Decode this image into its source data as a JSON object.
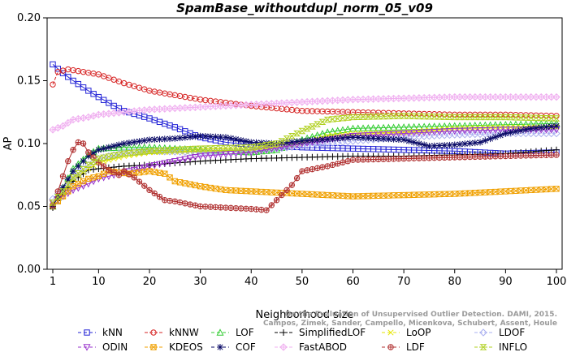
{
  "chart_data": {
    "type": "line",
    "title": "SpamBase_withoutdupl_norm_05_v09",
    "xlabel": "Neighborhood size",
    "ylabel": "AP",
    "xlim": [
      1,
      100
    ],
    "ylim": [
      0,
      0.2
    ],
    "x_ticks": [
      1,
      10,
      20,
      30,
      40,
      50,
      60,
      70,
      80,
      90,
      100
    ],
    "y_ticks": [
      "0.00",
      "0.05",
      "0.10",
      "0.15",
      "0.20"
    ],
    "grid": false,
    "legend_position": "bottom",
    "credit_lines": [
      "Campos, Zimek, Sander, Campello, Micenkova, Schubert, Assent, Houle",
      "On the Evaluation of Unsupervised Outlier Detection. DAMI, 2015."
    ],
    "series": [
      {
        "name": "kNN",
        "color": "#2323d6",
        "marker": "square",
        "points": [
          [
            1,
            0.163
          ],
          [
            3,
            0.156
          ],
          [
            5,
            0.15
          ],
          [
            8,
            0.142
          ],
          [
            10,
            0.137
          ],
          [
            13,
            0.13
          ],
          [
            15,
            0.126
          ],
          [
            20,
            0.12
          ],
          [
            25,
            0.113
          ],
          [
            30,
            0.105
          ],
          [
            35,
            0.101
          ],
          [
            40,
            0.099
          ],
          [
            50,
            0.097
          ],
          [
            60,
            0.096
          ],
          [
            70,
            0.095
          ],
          [
            80,
            0.094
          ],
          [
            90,
            0.092
          ],
          [
            100,
            0.093
          ]
        ]
      },
      {
        "name": "kNNW",
        "color": "#d62323",
        "marker": "circle",
        "points": [
          [
            1,
            0.147
          ],
          [
            2,
            0.157
          ],
          [
            4,
            0.159
          ],
          [
            10,
            0.155
          ],
          [
            15,
            0.148
          ],
          [
            20,
            0.142
          ],
          [
            30,
            0.135
          ],
          [
            40,
            0.13
          ],
          [
            50,
            0.126
          ],
          [
            60,
            0.125
          ],
          [
            70,
            0.124
          ],
          [
            80,
            0.123
          ],
          [
            90,
            0.123
          ],
          [
            100,
            0.122
          ]
        ]
      },
      {
        "name": "LOF",
        "color": "#33cc33",
        "marker": "triangle-up",
        "points": [
          [
            1,
            0.05
          ],
          [
            3,
            0.065
          ],
          [
            5,
            0.08
          ],
          [
            8,
            0.091
          ],
          [
            10,
            0.096
          ],
          [
            15,
            0.097
          ],
          [
            20,
            0.097
          ],
          [
            30,
            0.095
          ],
          [
            40,
            0.093
          ],
          [
            45,
            0.095
          ],
          [
            50,
            0.103
          ],
          [
            55,
            0.109
          ],
          [
            60,
            0.112
          ],
          [
            70,
            0.113
          ],
          [
            80,
            0.114
          ],
          [
            90,
            0.115
          ],
          [
            100,
            0.116
          ]
        ]
      },
      {
        "name": "SimplifiedLOF",
        "color": "#000000",
        "marker": "plus",
        "points": [
          [
            1,
            0.049
          ],
          [
            3,
            0.06
          ],
          [
            5,
            0.07
          ],
          [
            8,
            0.079
          ],
          [
            10,
            0.08
          ],
          [
            15,
            0.082
          ],
          [
            20,
            0.083
          ],
          [
            30,
            0.086
          ],
          [
            40,
            0.088
          ],
          [
            50,
            0.089
          ],
          [
            60,
            0.09
          ],
          [
            70,
            0.09
          ],
          [
            80,
            0.091
          ],
          [
            90,
            0.092
          ],
          [
            100,
            0.095
          ]
        ]
      },
      {
        "name": "LoOP",
        "color": "#e6e600",
        "marker": "cross",
        "points": [
          [
            1,
            0.052
          ],
          [
            3,
            0.062
          ],
          [
            5,
            0.072
          ],
          [
            8,
            0.08
          ],
          [
            10,
            0.085
          ],
          [
            15,
            0.09
          ],
          [
            20,
            0.093
          ],
          [
            30,
            0.094
          ],
          [
            40,
            0.095
          ],
          [
            50,
            0.1
          ],
          [
            55,
            0.106
          ],
          [
            60,
            0.108
          ],
          [
            70,
            0.109
          ],
          [
            80,
            0.112
          ],
          [
            90,
            0.113
          ],
          [
            100,
            0.113
          ]
        ]
      },
      {
        "name": "LDOF",
        "color": "#aab0f0",
        "marker": "diamond",
        "points": [
          [
            1,
            0.056
          ],
          [
            3,
            0.064
          ],
          [
            5,
            0.074
          ],
          [
            8,
            0.083
          ],
          [
            10,
            0.088
          ],
          [
            15,
            0.093
          ],
          [
            20,
            0.094
          ],
          [
            30,
            0.093
          ],
          [
            40,
            0.094
          ],
          [
            50,
            0.098
          ],
          [
            60,
            0.102
          ],
          [
            70,
            0.105
          ],
          [
            80,
            0.107
          ],
          [
            90,
            0.108
          ],
          [
            100,
            0.108
          ]
        ]
      },
      {
        "name": "ODIN",
        "color": "#9933cc",
        "marker": "triangle-down",
        "points": [
          [
            1,
            0.053
          ],
          [
            3,
            0.058
          ],
          [
            5,
            0.063
          ],
          [
            8,
            0.068
          ],
          [
            10,
            0.072
          ],
          [
            15,
            0.077
          ],
          [
            20,
            0.082
          ],
          [
            30,
            0.09
          ],
          [
            40,
            0.093
          ],
          [
            50,
            0.1
          ],
          [
            60,
            0.106
          ],
          [
            70,
            0.108
          ],
          [
            80,
            0.11
          ],
          [
            90,
            0.111
          ],
          [
            100,
            0.111
          ]
        ]
      },
      {
        "name": "KDEOS",
        "color": "#f0a000",
        "marker": "square-x",
        "points": [
          [
            1,
            0.05
          ],
          [
            3,
            0.058
          ],
          [
            5,
            0.066
          ],
          [
            8,
            0.072
          ],
          [
            10,
            0.074
          ],
          [
            12,
            0.078
          ],
          [
            14,
            0.077
          ],
          [
            16,
            0.076
          ],
          [
            20,
            0.078
          ],
          [
            23,
            0.076
          ],
          [
            25,
            0.07
          ],
          [
            30,
            0.066
          ],
          [
            35,
            0.063
          ],
          [
            40,
            0.062
          ],
          [
            45,
            0.061
          ],
          [
            50,
            0.06
          ],
          [
            60,
            0.058
          ],
          [
            70,
            0.059
          ],
          [
            80,
            0.06
          ],
          [
            90,
            0.062
          ],
          [
            100,
            0.064
          ]
        ]
      },
      {
        "name": "COF",
        "color": "#0a0a66",
        "marker": "asterisk",
        "points": [
          [
            1,
            0.05
          ],
          [
            3,
            0.065
          ],
          [
            5,
            0.078
          ],
          [
            8,
            0.09
          ],
          [
            10,
            0.095
          ],
          [
            15,
            0.1
          ],
          [
            20,
            0.103
          ],
          [
            25,
            0.104
          ],
          [
            30,
            0.106
          ],
          [
            35,
            0.105
          ],
          [
            40,
            0.101
          ],
          [
            45,
            0.1
          ],
          [
            50,
            0.102
          ],
          [
            60,
            0.105
          ],
          [
            70,
            0.103
          ],
          [
            75,
            0.098
          ],
          [
            80,
            0.099
          ],
          [
            85,
            0.101
          ],
          [
            90,
            0.108
          ],
          [
            95,
            0.112
          ],
          [
            100,
            0.114
          ]
        ]
      },
      {
        "name": "FastABOD",
        "color": "#f0b0f0",
        "marker": "diamond-plus",
        "points": [
          [
            1,
            0.111
          ],
          [
            3,
            0.114
          ],
          [
            5,
            0.119
          ],
          [
            8,
            0.121
          ],
          [
            10,
            0.123
          ],
          [
            15,
            0.125
          ],
          [
            20,
            0.127
          ],
          [
            25,
            0.128
          ],
          [
            30,
            0.129
          ],
          [
            40,
            0.131
          ],
          [
            50,
            0.133
          ],
          [
            60,
            0.135
          ],
          [
            70,
            0.136
          ],
          [
            80,
            0.137
          ],
          [
            90,
            0.137
          ],
          [
            100,
            0.137
          ]
        ]
      },
      {
        "name": "LDF",
        "color": "#b03030",
        "marker": "circle-plus",
        "points": [
          [
            1,
            0.051
          ],
          [
            2,
            0.062
          ],
          [
            3,
            0.074
          ],
          [
            4,
            0.086
          ],
          [
            5,
            0.095
          ],
          [
            6,
            0.101
          ],
          [
            7,
            0.1
          ],
          [
            8,
            0.093
          ],
          [
            10,
            0.085
          ],
          [
            12,
            0.079
          ],
          [
            14,
            0.075
          ],
          [
            15,
            0.078
          ],
          [
            17,
            0.073
          ],
          [
            20,
            0.063
          ],
          [
            23,
            0.055
          ],
          [
            25,
            0.054
          ],
          [
            30,
            0.05
          ],
          [
            35,
            0.049
          ],
          [
            40,
            0.048
          ],
          [
            43,
            0.047
          ],
          [
            45,
            0.055
          ],
          [
            48,
            0.067
          ],
          [
            50,
            0.078
          ],
          [
            55,
            0.082
          ],
          [
            60,
            0.087
          ],
          [
            70,
            0.088
          ],
          [
            80,
            0.089
          ],
          [
            90,
            0.09
          ],
          [
            100,
            0.091
          ]
        ]
      },
      {
        "name": "INFLO",
        "color": "#b0d020",
        "marker": "hourglass",
        "points": [
          [
            1,
            0.053
          ],
          [
            3,
            0.062
          ],
          [
            5,
            0.073
          ],
          [
            8,
            0.083
          ],
          [
            10,
            0.088
          ],
          [
            15,
            0.092
          ],
          [
            20,
            0.094
          ],
          [
            30,
            0.096
          ],
          [
            40,
            0.097
          ],
          [
            45,
            0.1
          ],
          [
            50,
            0.11
          ],
          [
            55,
            0.119
          ],
          [
            60,
            0.121
          ],
          [
            70,
            0.122
          ],
          [
            80,
            0.121
          ],
          [
            90,
            0.121
          ],
          [
            100,
            0.12
          ]
        ]
      }
    ]
  }
}
